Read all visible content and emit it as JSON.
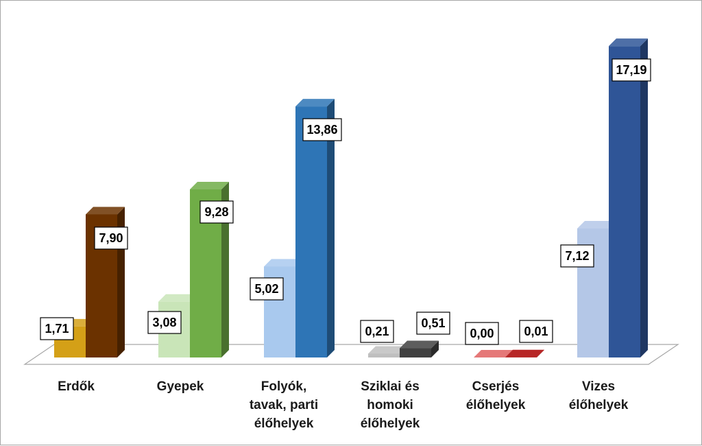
{
  "chart_data": {
    "type": "bar",
    "categories": [
      [
        "Erdők"
      ],
      [
        "Gyepek"
      ],
      [
        "Folyók,",
        "tavak, parti",
        "élőhelyek"
      ],
      [
        "Sziklai és",
        "homoki",
        "élőhelyek"
      ],
      [
        "Cserjés",
        "élőhelyek"
      ],
      [
        "Vizes",
        "élőhelyek"
      ]
    ],
    "series": [
      {
        "values": [
          1.71,
          3.08,
          5.02,
          0.21,
          0.0,
          7.12
        ]
      },
      {
        "values": [
          7.9,
          9.28,
          13.86,
          0.51,
          0.01,
          17.19
        ]
      }
    ],
    "value_labels": [
      [
        "1,71",
        "3,08",
        "5,02",
        "0,21",
        "0,00",
        "7,12"
      ],
      [
        "7,90",
        "9,28",
        "13,86",
        "0,51",
        "0,01",
        "17,19"
      ]
    ],
    "colors": [
      [
        "#d4a017",
        "#6b3200"
      ],
      [
        "#c9e5b8",
        "#70ad47"
      ],
      [
        "#a9c9ee",
        "#2e75b6"
      ],
      [
        "#bfbfbf",
        "#404040"
      ],
      [
        "#e06060",
        "#aa0000"
      ],
      [
        "#b4c7e7",
        "#2f5597"
      ]
    ],
    "ylim": [
      0,
      18
    ],
    "grid": false,
    "legend": "none",
    "style": "3d-clustered-column"
  }
}
